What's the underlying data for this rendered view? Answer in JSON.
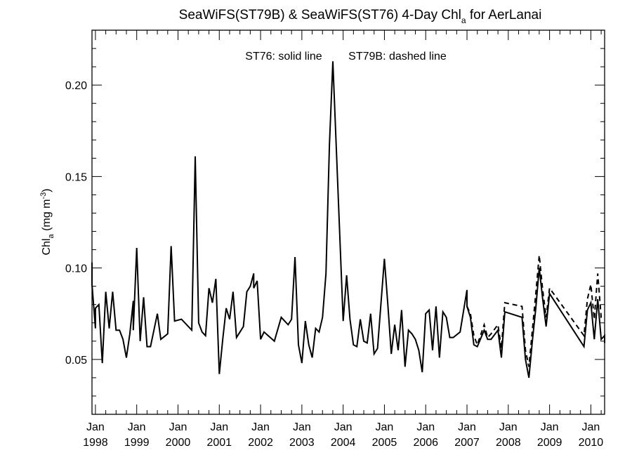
{
  "chart_data": {
    "type": "line",
    "title": {
      "main": "SeaWiFS(ST79B) & SeaWiFS(ST76) 4-Day Chl",
      "sub": "a",
      "tail": " for AerLanai"
    },
    "ylabel": {
      "main": "Chl",
      "sub": "a",
      "unit": " (mg m",
      "sup": "-3",
      "close": ")"
    },
    "xlabel": "",
    "annotations": {
      "solid": "ST76: solid line",
      "dashed": "ST79B: dashed line"
    },
    "ylim": [
      0.02,
      0.23
    ],
    "yticks": [
      "0.05",
      "0.10",
      "0.15",
      "0.20"
    ],
    "xlim": [
      "1997-12",
      "2010-05"
    ],
    "xticks": [
      {
        "top": "Jan",
        "bottom": "1998",
        "date": "1998-01"
      },
      {
        "top": "Jan",
        "bottom": "1999",
        "date": "1999-01"
      },
      {
        "top": "Jan",
        "bottom": "2000",
        "date": "2000-01"
      },
      {
        "top": "Jan",
        "bottom": "2001",
        "date": "2001-01"
      },
      {
        "top": "Jan",
        "bottom": "2002",
        "date": "2002-01"
      },
      {
        "top": "Jan",
        "bottom": "2003",
        "date": "2003-01"
      },
      {
        "top": "Jan",
        "bottom": "2004",
        "date": "2004-01"
      },
      {
        "top": "Jan",
        "bottom": "2005",
        "date": "2005-01"
      },
      {
        "top": "Jan",
        "bottom": "2006",
        "date": "2006-01"
      },
      {
        "top": "Jan",
        "bottom": "2007",
        "date": "2007-01"
      },
      {
        "top": "Jan",
        "bottom": "2008",
        "date": "2008-01"
      },
      {
        "top": "Jan",
        "bottom": "2009",
        "date": "2009-01"
      },
      {
        "top": "Jan",
        "bottom": "2010",
        "date": "2010-01"
      }
    ],
    "grid": false,
    "series": [
      {
        "name": "ST76",
        "style": "solid",
        "color": "#000000",
        "points": [
          [
            "1997-12",
            0.103
          ],
          [
            "1997-12",
            0.091
          ],
          [
            "1998-01",
            0.067
          ],
          [
            "1998-01",
            0.078
          ],
          [
            "1998-02",
            0.08
          ],
          [
            "1998-03",
            0.048
          ],
          [
            "1998-04",
            0.087
          ],
          [
            "1998-05",
            0.067
          ],
          [
            "1998-06",
            0.087
          ],
          [
            "1998-07",
            0.066
          ],
          [
            "1998-08",
            0.066
          ],
          [
            "1998-09",
            0.061
          ],
          [
            "1998-10",
            0.051
          ],
          [
            "1998-11",
            0.064
          ],
          [
            "1998-12",
            0.082
          ],
          [
            "1998-12",
            0.066
          ],
          [
            "1999-01",
            0.111
          ],
          [
            "1999-02",
            0.06
          ],
          [
            "1999-03",
            0.084
          ],
          [
            "1999-04",
            0.057
          ],
          [
            "1999-05",
            0.057
          ],
          [
            "1999-06",
            0.066
          ],
          [
            "1999-07",
            0.075
          ],
          [
            "1999-08",
            0.061
          ],
          [
            "1999-10",
            0.064
          ],
          [
            "1999-11",
            0.112
          ],
          [
            "1999-12",
            0.071
          ],
          [
            "2000-02",
            0.072
          ],
          [
            "2000-05",
            0.066
          ],
          [
            "2000-06",
            0.161
          ],
          [
            "2000-07",
            0.07
          ],
          [
            "2000-08",
            0.065
          ],
          [
            "2000-09",
            0.063
          ],
          [
            "2000-10",
            0.089
          ],
          [
            "2000-11",
            0.081
          ],
          [
            "2000-12",
            0.094
          ],
          [
            "2001-01",
            0.042
          ],
          [
            "2001-02",
            0.061
          ],
          [
            "2001-03",
            0.078
          ],
          [
            "2001-04",
            0.072
          ],
          [
            "2001-05",
            0.087
          ],
          [
            "2001-06",
            0.062
          ],
          [
            "2001-07",
            0.065
          ],
          [
            "2001-08",
            0.068
          ],
          [
            "2001-09",
            0.087
          ],
          [
            "2001-10",
            0.09
          ],
          [
            "2001-11",
            0.097
          ],
          [
            "2001-11",
            0.089
          ],
          [
            "2001-12",
            0.093
          ],
          [
            "2002-01",
            0.061
          ],
          [
            "2002-02",
            0.065
          ],
          [
            "2002-05",
            0.06
          ],
          [
            "2002-07",
            0.073
          ],
          [
            "2002-08",
            0.071
          ],
          [
            "2002-09",
            0.069
          ],
          [
            "2002-10",
            0.072
          ],
          [
            "2002-11",
            0.106
          ],
          [
            "2002-12",
            0.058
          ],
          [
            "2003-01",
            0.048
          ],
          [
            "2003-02",
            0.071
          ],
          [
            "2003-03",
            0.058
          ],
          [
            "2003-04",
            0.051
          ],
          [
            "2003-05",
            0.067
          ],
          [
            "2003-06",
            0.065
          ],
          [
            "2003-07",
            0.073
          ],
          [
            "2003-08",
            0.097
          ],
          [
            "2003-09",
            0.167
          ],
          [
            "2003-10",
            0.213
          ],
          [
            "2004-01",
            0.071
          ],
          [
            "2004-02",
            0.096
          ],
          [
            "2004-03",
            0.072
          ],
          [
            "2004-04",
            0.058
          ],
          [
            "2004-05",
            0.057
          ],
          [
            "2004-06",
            0.072
          ],
          [
            "2004-07",
            0.06
          ],
          [
            "2004-08",
            0.059
          ],
          [
            "2004-09",
            0.075
          ],
          [
            "2004-10",
            0.053
          ],
          [
            "2004-11",
            0.056
          ],
          [
            "2005-01",
            0.105
          ],
          [
            "2005-02",
            0.08
          ],
          [
            "2005-03",
            0.053
          ],
          [
            "2005-04",
            0.069
          ],
          [
            "2005-05",
            0.055
          ],
          [
            "2005-06",
            0.077
          ],
          [
            "2005-07",
            0.046
          ],
          [
            "2005-08",
            0.066
          ],
          [
            "2005-09",
            0.064
          ],
          [
            "2005-10",
            0.061
          ],
          [
            "2005-11",
            0.055
          ],
          [
            "2005-12",
            0.043
          ],
          [
            "2006-01",
            0.075
          ],
          [
            "2006-02",
            0.077
          ],
          [
            "2006-03",
            0.055
          ],
          [
            "2006-04",
            0.079
          ],
          [
            "2006-05",
            0.051
          ],
          [
            "2006-06",
            0.076
          ],
          [
            "2006-07",
            0.073
          ],
          [
            "2006-08",
            0.062
          ],
          [
            "2006-09",
            0.062
          ],
          [
            "2006-11",
            0.065
          ],
          [
            "2007-01",
            0.088
          ],
          [
            "2007-01",
            0.079
          ],
          [
            "2007-02",
            0.073
          ],
          [
            "2007-03",
            0.058
          ],
          [
            "2007-04",
            0.057
          ],
          [
            "2007-06",
            0.066
          ],
          [
            "2007-07",
            0.061
          ],
          [
            "2007-08",
            0.061
          ],
          [
            "2007-10",
            0.066
          ],
          [
            "2007-11",
            0.051
          ],
          [
            "2007-12",
            0.076
          ],
          [
            "2008-05",
            0.073
          ],
          [
            "2008-06",
            0.05
          ],
          [
            "2008-07",
            0.04
          ],
          [
            "2008-08",
            0.06
          ],
          [
            "2008-09",
            0.078
          ],
          [
            "2008-10",
            0.1
          ],
          [
            "2008-11",
            0.083
          ],
          [
            "2008-12",
            0.068
          ],
          [
            "2009-01",
            0.086
          ],
          [
            "2009-11",
            0.057
          ],
          [
            "2009-12",
            0.077
          ],
          [
            "2010-01",
            0.081
          ],
          [
            "2010-02",
            0.061
          ],
          [
            "2010-03",
            0.083
          ],
          [
            "2010-04",
            0.061
          ],
          [
            "2010-05",
            0.063
          ],
          [
            "2010-05",
            0.059
          ]
        ]
      },
      {
        "name": "ST79B",
        "style": "dashed",
        "color": "#000000",
        "points": [
          [
            "2007-01",
            0.079
          ],
          [
            "2007-02",
            0.075
          ],
          [
            "2007-03",
            0.063
          ],
          [
            "2007-04",
            0.058
          ],
          [
            "2007-06",
            0.069
          ],
          [
            "2007-07",
            0.062
          ],
          [
            "2007-08",
            0.064
          ],
          [
            "2007-10",
            0.069
          ],
          [
            "2007-11",
            0.056
          ],
          [
            "2007-12",
            0.081
          ],
          [
            "2008-05",
            0.079
          ],
          [
            "2008-06",
            0.055
          ],
          [
            "2008-07",
            0.046
          ],
          [
            "2008-08",
            0.066
          ],
          [
            "2008-09",
            0.086
          ],
          [
            "2008-10",
            0.107
          ],
          [
            "2008-11",
            0.088
          ],
          [
            "2008-12",
            0.073
          ],
          [
            "2009-01",
            0.089
          ],
          [
            "2009-11",
            0.063
          ],
          [
            "2009-12",
            0.083
          ],
          [
            "2010-01",
            0.091
          ],
          [
            "2010-02",
            0.072
          ],
          [
            "2010-03",
            0.097
          ],
          [
            "2010-04",
            0.073
          ],
          [
            "2010-05",
            0.072
          ]
        ]
      }
    ]
  }
}
